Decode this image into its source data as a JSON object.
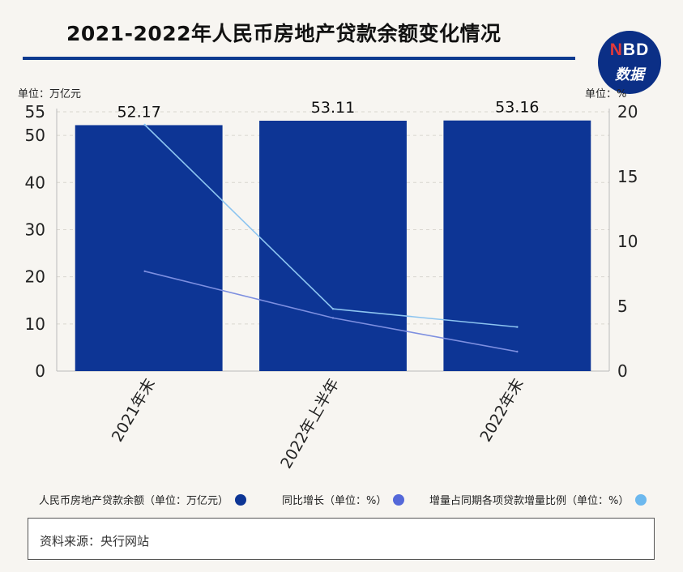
{
  "title": "2021-2022年人民币房地产贷款余额变化情况",
  "logo": {
    "line1_n": "N",
    "line1_rest": "BD",
    "line2": "数据"
  },
  "units": {
    "left": "单位：万亿元",
    "right": "单位：%"
  },
  "source": "资料来源：央行网站",
  "colors": {
    "bar": "#0d3595",
    "line_growth": "#7d8fe0",
    "line_share": "#8cc4f0",
    "title_rule": "#0d3a8f"
  },
  "legend": [
    {
      "label": "人民币房地产贷款余额（单位：万亿元）",
      "color": "#0d3595"
    },
    {
      "label": "同比增长（单位：%）",
      "color": "#5468d9"
    },
    {
      "label": "增量占同期各项贷款增量比例（单位：%）",
      "color": "#6cb8ee"
    }
  ],
  "chart_data": {
    "type": "bar",
    "categories": [
      "2021年末",
      "2022年上半年",
      "2022年末"
    ],
    "series": [
      {
        "name": "人民币房地产贷款余额（单位：万亿元）",
        "type": "bar",
        "axis": "left",
        "values": [
          52.17,
          53.11,
          53.16
        ],
        "labels": [
          "52.17",
          "53.11",
          "53.16"
        ]
      },
      {
        "name": "同比增长（单位：%）",
        "type": "line",
        "axis": "right",
        "values": [
          7.7,
          4.1,
          1.5
        ]
      },
      {
        "name": "增量占同期各项贷款增量比例（单位：%）",
        "type": "line",
        "axis": "right",
        "values": [
          19.0,
          4.8,
          3.4
        ]
      }
    ],
    "y_left": {
      "ticks": [
        0,
        10,
        20,
        30,
        40,
        50,
        55
      ],
      "range": [
        0,
        55
      ]
    },
    "y_right": {
      "ticks": [
        0,
        5,
        10,
        15,
        20
      ],
      "range": [
        0,
        20
      ]
    },
    "grid": true
  }
}
